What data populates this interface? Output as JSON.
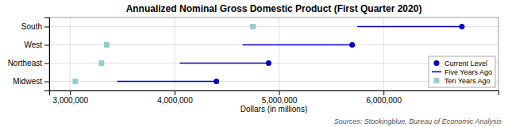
{
  "chart_data": {
    "type": "dot",
    "orientation": "horizontal",
    "title": "Annualized Nominal Gross Domestic Product (First Quarter 2020)",
    "x_label": "Dollars (in millions)",
    "annotation": "Sources: Stockingblue, Bureau of Economic Analysis",
    "categories": [
      "South",
      "West",
      "Northeast",
      "Midwest"
    ],
    "series": [
      {
        "name": "Current Level",
        "type": "point",
        "marker": "circle",
        "color": "#0000bb",
        "values": [
          6750000,
          5700000,
          4900000,
          4400000
        ]
      },
      {
        "name": "Five Years Ago",
        "type": "line",
        "line_style": "solid",
        "color": "#0000bb",
        "values": [
          5750000,
          4650000,
          4050000,
          3450000
        ]
      },
      {
        "name": "Ten Years Ago",
        "type": "point",
        "marker": "square",
        "color": "#99cccc",
        "values": [
          4750000,
          3350000,
          3300000,
          3050000
        ]
      }
    ],
    "xlim": [
      2800000,
      7100000
    ],
    "xticks": [
      {
        "value": 3000000,
        "label": "3,000,000"
      },
      {
        "value": 4000000,
        "label": "4,000,000"
      },
      {
        "value": 5000000,
        "label": "5,000,000"
      },
      {
        "value": 6000000,
        "label": "6,000,000"
      }
    ],
    "grid": true,
    "legend": "lower right"
  }
}
